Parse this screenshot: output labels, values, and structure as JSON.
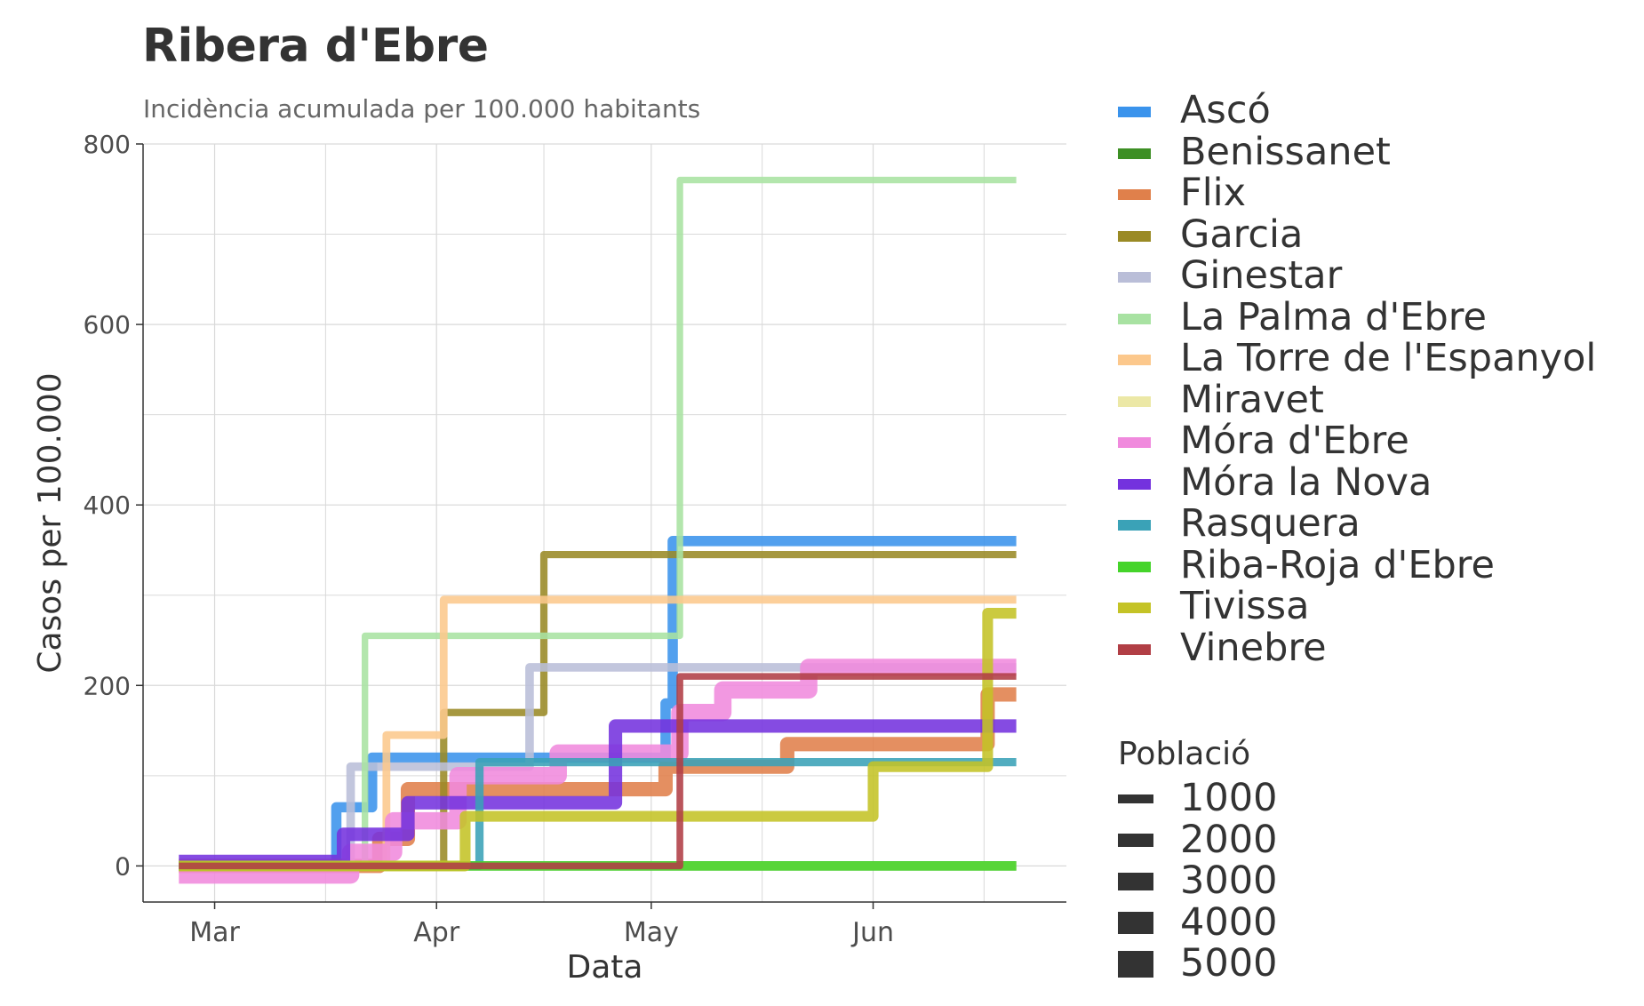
{
  "chart_data": {
    "type": "line",
    "title": "Ribera d'Ebre",
    "subtitle": "Incidència acumulada per 100.000 habitants",
    "xlabel": "Data",
    "ylabel": "Casos per 100.000",
    "ylim": [
      -40,
      800
    ],
    "yticks": [
      0,
      200,
      400,
      600,
      800
    ],
    "xticks": [
      {
        "label": "Mar",
        "date": "2020-03-01"
      },
      {
        "label": "Apr",
        "date": "2020-04-01"
      },
      {
        "label": "May",
        "date": "2020-05-01"
      },
      {
        "label": "Jun",
        "date": "2020-06-01"
      }
    ],
    "xlim": [
      "2020-02-20",
      "2020-06-28"
    ],
    "grid": true,
    "legend_position": "right",
    "size_legend": {
      "title": "Població",
      "values": [
        1000,
        2000,
        3000,
        4000,
        5000
      ]
    },
    "series": [
      {
        "name": "Ascó",
        "color": "#3a93ec",
        "population": 1500,
        "steps": [
          [
            "2020-02-25",
            0
          ],
          [
            "2020-03-18",
            65
          ],
          [
            "2020-03-23",
            120
          ],
          [
            "2020-05-03",
            180
          ],
          [
            "2020-05-04",
            360
          ],
          [
            "2020-06-21",
            360
          ]
        ]
      },
      {
        "name": "Benissanet",
        "color": "#3d8f24",
        "population": 1100,
        "steps": [
          [
            "2020-02-25",
            0
          ],
          [
            "2020-06-21",
            0
          ]
        ]
      },
      {
        "name": "Flix",
        "color": "#e0804b",
        "population": 3500,
        "steps": [
          [
            "2020-02-25",
            0
          ],
          [
            "2020-03-24",
            30
          ],
          [
            "2020-03-28",
            85
          ],
          [
            "2020-05-03",
            110
          ],
          [
            "2020-05-20",
            135
          ],
          [
            "2020-06-17",
            190
          ],
          [
            "2020-06-21",
            190
          ]
        ]
      },
      {
        "name": "Garcia",
        "color": "#9a8a25",
        "population": 550,
        "steps": [
          [
            "2020-02-25",
            0
          ],
          [
            "2020-04-02",
            170
          ],
          [
            "2020-04-16",
            345
          ],
          [
            "2020-06-21",
            345
          ]
        ]
      },
      {
        "name": "Ginestar",
        "color": "#babed8",
        "population": 900,
        "steps": [
          [
            "2020-02-25",
            0
          ],
          [
            "2020-03-20",
            110
          ],
          [
            "2020-04-14",
            220
          ],
          [
            "2020-06-21",
            220
          ]
        ]
      },
      {
        "name": "La Palma d'Ebre",
        "color": "#a8e2a2",
        "population": 390,
        "steps": [
          [
            "2020-02-25",
            0
          ],
          [
            "2020-03-22",
            255
          ],
          [
            "2020-05-05",
            760
          ],
          [
            "2020-06-21",
            760
          ]
        ]
      },
      {
        "name": "La Torre de l'Espanyol",
        "color": "#fcc88c",
        "population": 680,
        "steps": [
          [
            "2020-02-25",
            0
          ],
          [
            "2020-03-25",
            145
          ],
          [
            "2020-04-02",
            295
          ],
          [
            "2020-06-21",
            295
          ]
        ]
      },
      {
        "name": "Miravet",
        "color": "#ece8a6",
        "population": 780,
        "steps": [
          [
            "2020-02-25",
            0
          ],
          [
            "2020-06-21",
            0
          ]
        ]
      },
      {
        "name": "Móra d'Ebre",
        "color": "#f08add",
        "population": 5600,
        "steps": [
          [
            "2020-02-25",
            -10
          ],
          [
            "2020-03-20",
            15
          ],
          [
            "2020-03-26",
            50
          ],
          [
            "2020-04-04",
            100
          ],
          [
            "2020-04-18",
            125
          ],
          [
            "2020-05-05",
            170
          ],
          [
            "2020-05-11",
            195
          ],
          [
            "2020-05-23",
            220
          ],
          [
            "2020-06-21",
            220
          ]
        ]
      },
      {
        "name": "Móra la Nova",
        "color": "#7432de",
        "population": 3000,
        "steps": [
          [
            "2020-02-25",
            5
          ],
          [
            "2020-03-19",
            35
          ],
          [
            "2020-03-28",
            70
          ],
          [
            "2020-04-26",
            155
          ],
          [
            "2020-06-21",
            155
          ]
        ]
      },
      {
        "name": "Rasquera",
        "color": "#3aa2b7",
        "population": 800,
        "steps": [
          [
            "2020-02-25",
            0
          ],
          [
            "2020-04-07",
            115
          ],
          [
            "2020-06-21",
            115
          ]
        ]
      },
      {
        "name": "Riba-Roja d'Ebre",
        "color": "#45d42a",
        "population": 1200,
        "steps": [
          [
            "2020-02-25",
            0
          ],
          [
            "2020-06-21",
            0
          ]
        ]
      },
      {
        "name": "Tivissa",
        "color": "#c4c326",
        "population": 1700,
        "steps": [
          [
            "2020-02-25",
            0
          ],
          [
            "2020-04-05",
            55
          ],
          [
            "2020-06-01",
            110
          ],
          [
            "2020-06-17",
            280
          ],
          [
            "2020-06-21",
            280
          ]
        ]
      },
      {
        "name": "Vinebre",
        "color": "#b13e45",
        "population": 430,
        "steps": [
          [
            "2020-02-25",
            0
          ],
          [
            "2020-05-05",
            210
          ],
          [
            "2020-06-21",
            210
          ]
        ]
      }
    ]
  }
}
